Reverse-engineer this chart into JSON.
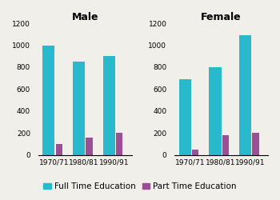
{
  "male_full": [
    1000,
    850,
    900
  ],
  "male_part": [
    100,
    155,
    200
  ],
  "female_full": [
    690,
    800,
    1090
  ],
  "female_part": [
    50,
    180,
    200
  ],
  "categories": [
    "1970/71",
    "1980/81",
    "1990/91"
  ],
  "ylim": [
    0,
    1200
  ],
  "yticks": [
    0,
    200,
    400,
    600,
    800,
    1000,
    1200
  ],
  "full_color": "#29B9CC",
  "part_color": "#9B4F96",
  "title_male": "Male",
  "title_female": "Female",
  "legend_full": "Full Time Education",
  "legend_part": "Part Time Education",
  "bg_color": "#F0EFEA",
  "title_fontsize": 9,
  "tick_fontsize": 6.5,
  "legend_fontsize": 7.5
}
